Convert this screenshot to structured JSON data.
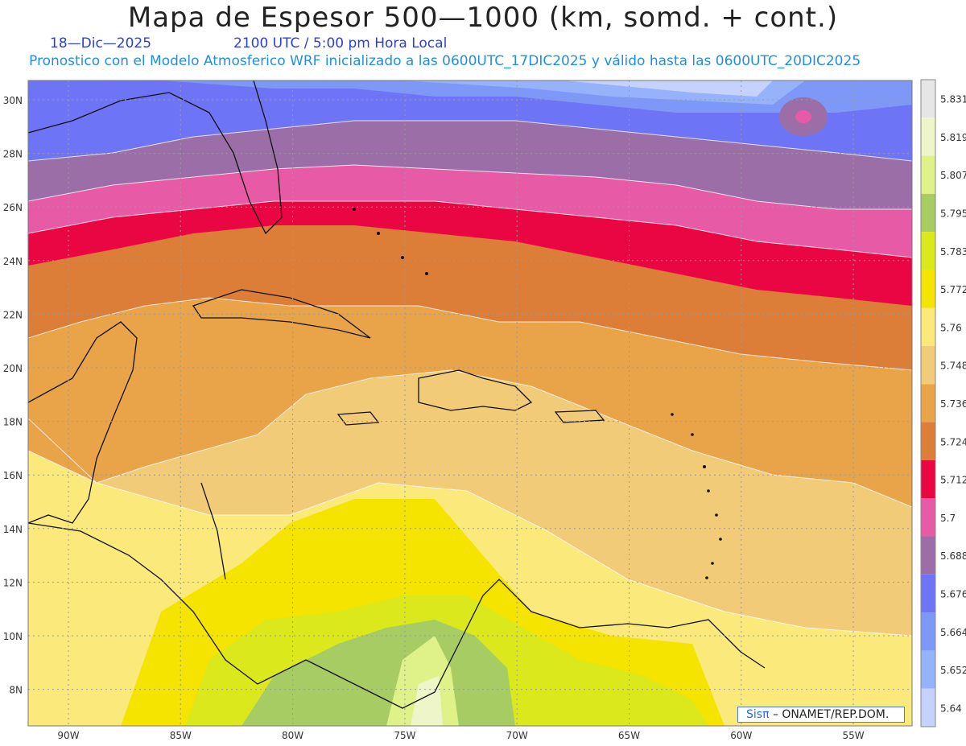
{
  "header": {
    "title": "Mapa de Espesor 500—1000 (km, somd. + cont.)",
    "date": "18—Dic—2025",
    "time": "2100 UTC / 5:00 pm Hora Local",
    "model_line": "Pronostico con el Modelo Atmosferico WRF inicializado a las 0600UTC_17DIC2025 y válido hasta las  0600UTC_20DIC2025"
  },
  "axes": {
    "lat_labels": [
      "30N",
      "28N",
      "26N",
      "24N",
      "22N",
      "20N",
      "18N",
      "16N",
      "14N",
      "12N",
      "10N",
      "8N"
    ],
    "lon_labels": [
      "90W",
      "85W",
      "80W",
      "75W",
      "70W",
      "65W",
      "60W",
      "55W"
    ]
  },
  "legend": {
    "values": [
      "5.831",
      "5.819",
      "5.807",
      "5.795",
      "5.783",
      "5.772",
      "5.76",
      "5.748",
      "5.736",
      "5.724",
      "5.712",
      "5.7",
      "5.688",
      "5.676",
      "5.664",
      "5.652",
      "5.64"
    ],
    "colors": [
      "#e6e6e6",
      "#eef5c9",
      "#dff28a",
      "#a8cc64",
      "#dbe81c",
      "#f5e400",
      "#fbe97c",
      "#f1cb78",
      "#e9a348",
      "#dc7d38",
      "#ea0643",
      "#e65aa6",
      "#9b6ea8",
      "#6e74f6",
      "#7e98f8",
      "#96b2fb",
      "#c5d2fb"
    ]
  },
  "credit": {
    "brand": "Sisπ",
    "text": "– ONAMET/REP.DOM."
  }
}
